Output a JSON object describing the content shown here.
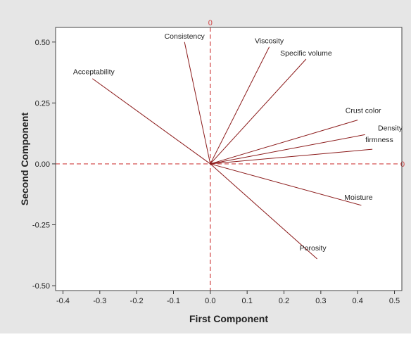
{
  "chart_data": {
    "type": "loading-plot",
    "title": "",
    "xlabel": "First Component",
    "ylabel": "Second Component",
    "xlim": [
      -0.42,
      0.52
    ],
    "ylim": [
      -0.52,
      0.56
    ],
    "x_ticks": [
      -0.4,
      -0.3,
      -0.2,
      -0.1,
      0.0,
      0.1,
      0.2,
      0.3,
      0.4,
      0.5
    ],
    "x_tick_labels": [
      "-0.4",
      "-0.3",
      "-0.2",
      "-0.1",
      "0.0",
      "0.1",
      "0.2",
      "0.3",
      "0.4",
      "0.5"
    ],
    "y_ticks": [
      -0.5,
      -0.25,
      0.0,
      0.25,
      0.5
    ],
    "y_tick_labels": [
      "-0.50",
      "-0.25",
      "0.00",
      "0.25",
      "0.50"
    ],
    "reference_lines": {
      "x": 0,
      "y": 0,
      "label": "0",
      "color": "#c0392b"
    },
    "grid": false,
    "colors": {
      "vector": "#8b1a1a",
      "reference": "#d04040",
      "panel_bg": "#e6e6e6",
      "plot_bg": "#ffffff"
    },
    "series": [
      {
        "label": "Consistency",
        "x": -0.07,
        "y": 0.5
      },
      {
        "label": "Viscosity",
        "x": 0.16,
        "y": 0.48
      },
      {
        "label": "Specific volume",
        "x": 0.26,
        "y": 0.43
      },
      {
        "label": "Acceptability",
        "x": -0.32,
        "y": 0.35
      },
      {
        "label": "Crust color",
        "x": 0.4,
        "y": 0.18
      },
      {
        "label": "Density",
        "x": 0.42,
        "y": 0.12
      },
      {
        "label": "firmness",
        "x": 0.44,
        "y": 0.06
      },
      {
        "label": "Moisture",
        "x": 0.41,
        "y": -0.17
      },
      {
        "label": "Porosity",
        "x": 0.29,
        "y": -0.39
      }
    ]
  }
}
